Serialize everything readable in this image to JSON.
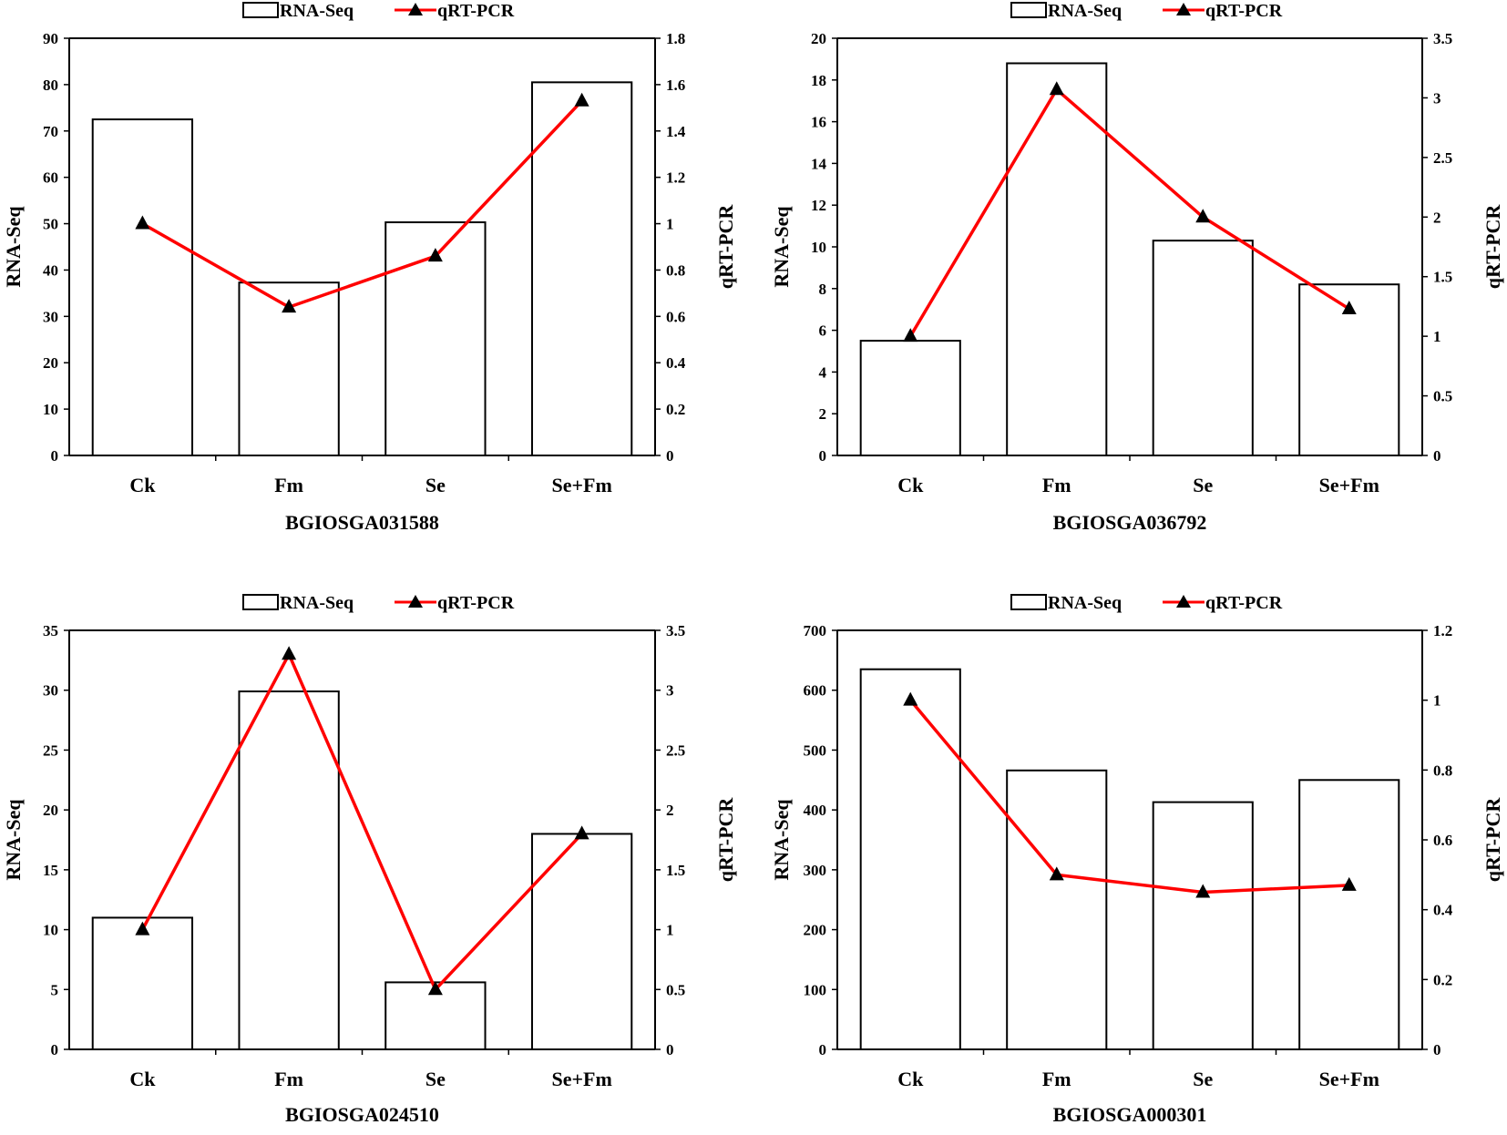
{
  "legend": {
    "bar_label": "RNA-Seq",
    "line_label": "qRT-PCR"
  },
  "colors": {
    "bar_fill": "#ffffff",
    "bar_stroke": "#000000",
    "line": "#ff0000",
    "marker": "#000000"
  },
  "chart_data": [
    {
      "type": "bar+line",
      "title": "BGIOSGA031588",
      "categories": [
        "Ck",
        "Fm",
        "Se",
        "Se+Fm"
      ],
      "series": [
        {
          "name": "RNA-Seq",
          "type": "bar",
          "axis": "left",
          "values": [
            72.5,
            37.3,
            50.3,
            80.5
          ]
        },
        {
          "name": "qRT-PCR",
          "type": "line",
          "axis": "right",
          "values": [
            1.0,
            0.64,
            0.86,
            1.53
          ]
        }
      ],
      "ylabel": "RNA-Seq",
      "y2label": "qRT-PCR",
      "ylim": [
        0,
        90
      ],
      "yticks": [
        0,
        10,
        20,
        30,
        40,
        50,
        60,
        70,
        80,
        90
      ],
      "y2lim": [
        0,
        1.8
      ],
      "y2ticks": [
        0,
        0.2,
        0.4,
        0.6,
        0.8,
        1,
        1.2,
        1.4,
        1.6,
        1.8
      ]
    },
    {
      "type": "bar+line",
      "title": "BGIOSGA036792",
      "categories": [
        "Ck",
        "Fm",
        "Se",
        "Se+Fm"
      ],
      "series": [
        {
          "name": "RNA-Seq",
          "type": "bar",
          "axis": "left",
          "values": [
            5.5,
            18.8,
            10.3,
            8.2
          ]
        },
        {
          "name": "qRT-PCR",
          "type": "line",
          "axis": "right",
          "values": [
            1.0,
            3.07,
            2.0,
            1.23
          ]
        }
      ],
      "ylabel": "RNA-Seq",
      "y2label": "qRT-PCR",
      "ylim": [
        0,
        20
      ],
      "yticks": [
        0,
        2,
        4,
        6,
        8,
        10,
        12,
        14,
        16,
        18,
        20
      ],
      "y2lim": [
        0,
        3.5
      ],
      "y2ticks": [
        0,
        0.5,
        1,
        1.5,
        2,
        2.5,
        3,
        3.5
      ]
    },
    {
      "type": "bar+line",
      "title": "BGIOSGA024510",
      "categories": [
        "Ck",
        "Fm",
        "Se",
        "Se+Fm"
      ],
      "series": [
        {
          "name": "RNA-Seq",
          "type": "bar",
          "axis": "left",
          "values": [
            11.0,
            29.9,
            5.6,
            18.0
          ]
        },
        {
          "name": "qRT-PCR",
          "type": "line",
          "axis": "right",
          "values": [
            1.0,
            3.3,
            0.5,
            1.8
          ]
        }
      ],
      "ylabel": "RNA-Seq",
      "y2label": "qRT-PCR",
      "ylim": [
        0,
        35
      ],
      "yticks": [
        0,
        5,
        10,
        15,
        20,
        25,
        30,
        35
      ],
      "y2lim": [
        0,
        3.5
      ],
      "y2ticks": [
        0,
        0.5,
        1,
        1.5,
        2,
        2.5,
        3,
        3.5
      ]
    },
    {
      "type": "bar+line",
      "title": "BGIOSGA000301",
      "categories": [
        "Ck",
        "Fm",
        "Se",
        "Se+Fm"
      ],
      "series": [
        {
          "name": "RNA-Seq",
          "type": "bar",
          "axis": "left",
          "values": [
            635,
            466,
            413,
            450
          ]
        },
        {
          "name": "qRT-PCR",
          "type": "line",
          "axis": "right",
          "values": [
            1.0,
            0.5,
            0.45,
            0.47
          ]
        }
      ],
      "ylabel": "RNA-Seq",
      "y2label": "qRT-PCR",
      "ylim": [
        0,
        700
      ],
      "yticks": [
        0,
        100,
        200,
        300,
        400,
        500,
        600,
        700
      ],
      "y2lim": [
        0,
        1.2
      ],
      "y2ticks": [
        0,
        0.2,
        0.4,
        0.6,
        0.8,
        1,
        1.2
      ]
    }
  ]
}
